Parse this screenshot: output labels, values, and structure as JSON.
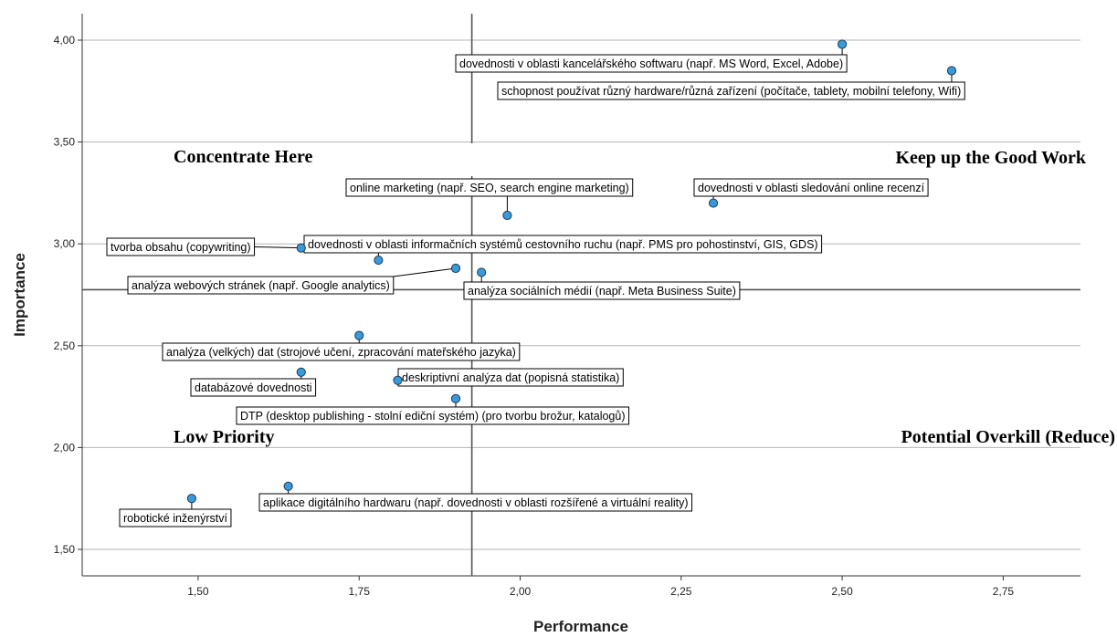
{
  "chart_data": {
    "type": "scatter",
    "xlabel": "Performance",
    "ylabel": "Importance",
    "xlim": [
      1.32,
      2.87
    ],
    "ylim": [
      1.37,
      4.13
    ],
    "x_ticks": [
      "1,50",
      "1,75",
      "2,00",
      "2,25",
      "2,50",
      "2,75"
    ],
    "x_tick_values": [
      1.5,
      1.75,
      2.0,
      2.25,
      2.5,
      2.75
    ],
    "y_ticks": [
      "1,50",
      "2,00",
      "2,50",
      "3,00",
      "3,50",
      "4,00"
    ],
    "y_tick_values": [
      1.5,
      2.0,
      2.5,
      3.0,
      3.5,
      4.0
    ],
    "grid": "horizontal",
    "reference_lines": {
      "x_mean": 1.925,
      "y_mean": 2.775
    },
    "point_color": "#3a9ad9",
    "quadrant_labels": {
      "top_left": "Concentrate Here",
      "top_right": "Keep up the Good Work",
      "bottom_left": "Low Priority",
      "bottom_right": "Potential Overkill (Reduce)"
    },
    "points": [
      {
        "x": 2.5,
        "y": 3.98,
        "label": "dovednosti v oblasti kancelářského softwaru (např. MS Word, Excel, Adobe)"
      },
      {
        "x": 2.67,
        "y": 3.85,
        "label": "schopnost používat různý hardware/různá zařízení (počítače, tablety, mobilní telefony, Wifi)"
      },
      {
        "x": 1.98,
        "y": 3.14,
        "label": "online marketing (např. SEO, search engine marketing)"
      },
      {
        "x": 2.3,
        "y": 3.2,
        "label": "dovednosti v oblasti sledování online recenzí"
      },
      {
        "x": 1.66,
        "y": 2.98,
        "label": "tvorba obsahu (copywriting)"
      },
      {
        "x": 1.78,
        "y": 2.92,
        "label": "dovednosti v oblasti informačních systémů cestovního ruchu (např. PMS pro pohostinství, GIS, GDS)"
      },
      {
        "x": 1.9,
        "y": 2.88,
        "label": "analýza webových stránek (např. Google analytics)"
      },
      {
        "x": 1.94,
        "y": 2.86,
        "label": "analýza sociálních médií (např. Meta Business Suite)"
      },
      {
        "x": 1.75,
        "y": 2.55,
        "label": "analýza (velkých) dat (strojové učení, zpracování mateřského jazyka)"
      },
      {
        "x": 1.66,
        "y": 2.37,
        "label": "databázové dovednosti"
      },
      {
        "x": 1.81,
        "y": 2.33,
        "label": "deskriptivní analýza dat (popisná statistika)"
      },
      {
        "x": 1.9,
        "y": 2.24,
        "label": "DTP (desktop publishing - stolní ediční systém) (pro tvorbu brožur, katalogů)"
      },
      {
        "x": 1.49,
        "y": 1.75,
        "label": "robotické inženýrství"
      },
      {
        "x": 1.64,
        "y": 1.81,
        "label": "aplikace digitálního hardwaru (např. dovednosti v oblasti rozšířené a virtuální reality)"
      }
    ]
  }
}
